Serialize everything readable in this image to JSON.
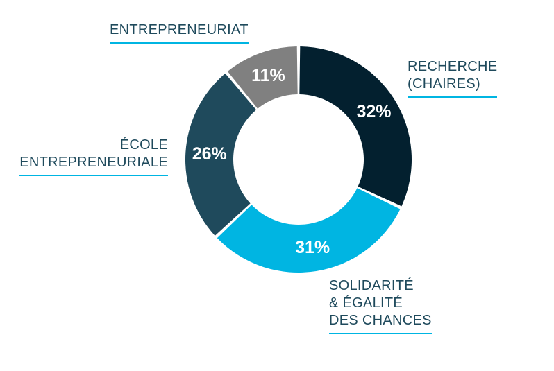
{
  "chart_data": {
    "type": "pie",
    "variant": "donut",
    "slices": [
      {
        "label": "RECHERCHE\n(CHAIRES)",
        "value": 32,
        "value_label": "32%",
        "color": "#03202f"
      },
      {
        "label": "SOLIDARITÉ\n& ÉGALITÉ\nDES CHANCES",
        "value": 31,
        "value_label": "31%",
        "color": "#00b5e2"
      },
      {
        "label": "ÉCOLE\nENTREPRENEURIALE",
        "value": 26,
        "value_label": "26%",
        "color": "#1f4a5c"
      },
      {
        "label": "ENTREPRENEURIAT",
        "value": 11,
        "value_label": "11%",
        "color": "#808080"
      }
    ],
    "start_angle": "top (12 o'clock)",
    "direction": "clockwise",
    "label_text_color": "#1f4a5c",
    "label_underline_color": "#00b5e2"
  }
}
